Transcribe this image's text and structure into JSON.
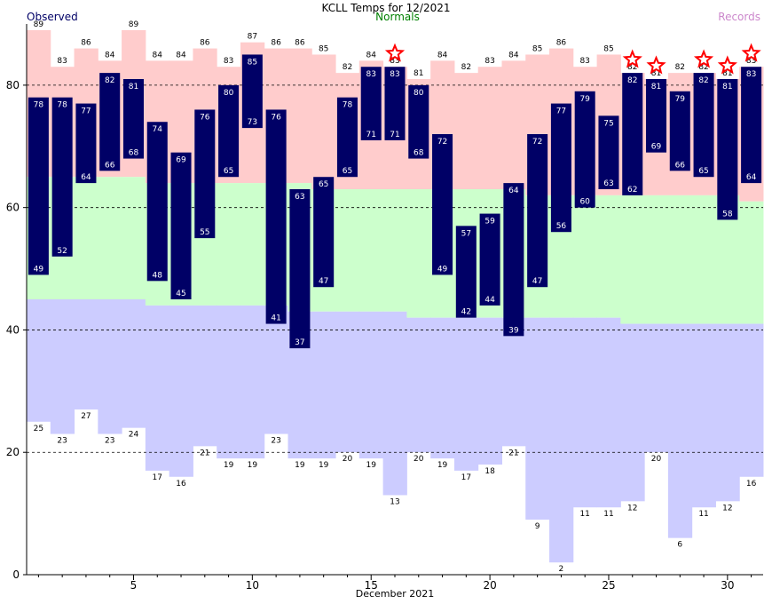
{
  "chart_data": {
    "type": "bar",
    "title": "KCLL Temps for 12/2021",
    "xlabel": "December 2021",
    "ylabel": "",
    "legend": {
      "observed": "Observed",
      "normals": "Normals",
      "records": "Records"
    },
    "xlim": [
      0.5,
      31.5
    ],
    "ylim": [
      0,
      90
    ],
    "xticks": [
      5,
      10,
      15,
      20,
      25,
      30
    ],
    "yticks": [
      0,
      20,
      40,
      60,
      80
    ],
    "grid_lines": [
      20,
      40,
      60,
      80
    ],
    "days": [
      1,
      2,
      3,
      4,
      5,
      6,
      7,
      8,
      9,
      10,
      11,
      12,
      13,
      14,
      15,
      16,
      17,
      18,
      19,
      20,
      21,
      22,
      23,
      24,
      25,
      26,
      27,
      28,
      29,
      30,
      31
    ],
    "observed_high": [
      78,
      78,
      77,
      82,
      81,
      74,
      69,
      76,
      80,
      85,
      76,
      63,
      65,
      78,
      83,
      83,
      80,
      72,
      57,
      59,
      64,
      72,
      77,
      79,
      75,
      82,
      81,
      79,
      82,
      81,
      83
    ],
    "observed_low": [
      49,
      52,
      64,
      66,
      68,
      48,
      45,
      55,
      65,
      73,
      41,
      37,
      47,
      65,
      71,
      71,
      68,
      49,
      42,
      44,
      39,
      47,
      56,
      60,
      63,
      62,
      69,
      66,
      65,
      58,
      64
    ],
    "record_high": [
      89,
      83,
      86,
      84,
      89,
      84,
      84,
      86,
      83,
      87,
      86,
      86,
      85,
      82,
      84,
      83,
      81,
      84,
      82,
      83,
      84,
      85,
      86,
      83,
      85,
      82,
      81,
      82,
      82,
      81,
      83
    ],
    "record_low": [
      25,
      23,
      27,
      23,
      24,
      17,
      16,
      21,
      19,
      19,
      23,
      19,
      19,
      20,
      19,
      13,
      20,
      19,
      17,
      18,
      21,
      9,
      2,
      11,
      11,
      12,
      20,
      6,
      11,
      12,
      16
    ],
    "normal_high": [
      65,
      65,
      65,
      65,
      65,
      64,
      64,
      64,
      64,
      64,
      64,
      64,
      63,
      63,
      63,
      63,
      63,
      63,
      63,
      63,
      63,
      62,
      62,
      62,
      62,
      62,
      62,
      62,
      62,
      62,
      61
    ],
    "normal_low": [
      45,
      45,
      45,
      45,
      45,
      44,
      44,
      44,
      44,
      44,
      44,
      43,
      43,
      43,
      43,
      43,
      42,
      42,
      42,
      42,
      42,
      42,
      42,
      42,
      42,
      41,
      41,
      41,
      41,
      41,
      41
    ],
    "record_set_days": [
      16,
      26,
      27,
      29,
      30,
      31
    ],
    "colors": {
      "observed": "#000066",
      "record_high_band": "#ffcccc",
      "normal_band": "#ccffcc",
      "record_low_band": "#ccccff",
      "record_star": "#ff0000",
      "normals_label": "#008000",
      "records_label": "#cc88cc",
      "grid": "#000000"
    }
  }
}
